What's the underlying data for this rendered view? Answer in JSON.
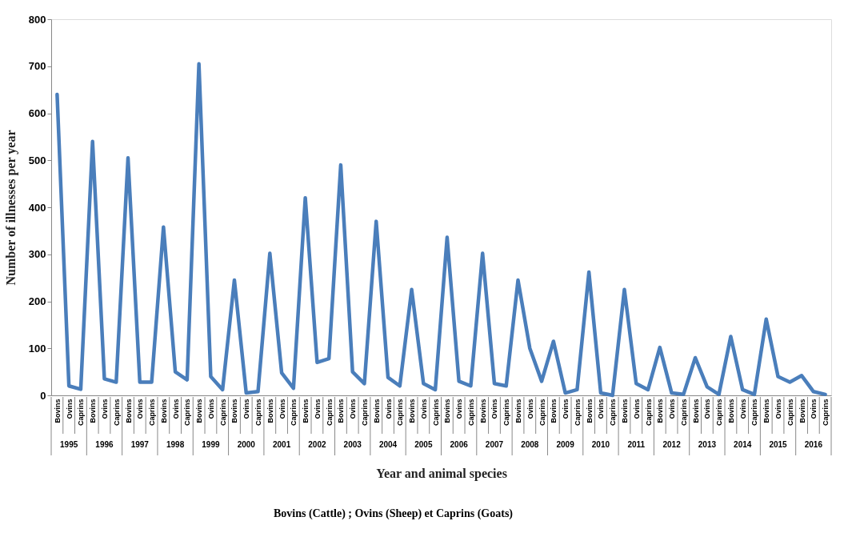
{
  "chart_data": {
    "type": "line",
    "xlabel": "Year and animal species",
    "ylabel": "Number of illnesses per year",
    "categories": [
      "Bovins",
      "Ovins",
      "Caprins",
      "Bovins",
      "Ovins",
      "Caprins",
      "Bovins",
      "Ovins",
      "Caprins",
      "Bovins",
      "Ovins",
      "Caprins",
      "Bovins",
      "Ovins",
      "Caprins",
      "Bovins",
      "Ovins",
      "Caprins",
      "Bovins",
      "Ovins",
      "Caprins",
      "Bovins",
      "Ovins",
      "Caprins",
      "Bovins",
      "Ovins",
      "Caprins",
      "Bovins",
      "Ovins",
      "Caprins",
      "Bovins",
      "Ovins",
      "Caprins",
      "Bovins",
      "Ovins",
      "Caprins",
      "Bovins",
      "Ovins",
      "Caprins",
      "Bovins",
      "Ovins",
      "Caprins",
      "Bovins",
      "Ovins",
      "Caprins",
      "Bovins",
      "Ovins",
      "Caprins",
      "Bovins",
      "Ovins",
      "Caprins",
      "Bovins",
      "Ovins",
      "Caprins",
      "Bovins",
      "Ovins",
      "Caprins",
      "Bovins",
      "Ovins",
      "Caprins",
      "Bovins",
      "Ovins",
      "Caprins",
      "Bovins",
      "Ovins",
      "Caprins"
    ],
    "series": [
      {
        "color": "#4a7ebb",
        "values": [
          640,
          20,
          13,
          540,
          35,
          28,
          505,
          28,
          28,
          358,
          50,
          33,
          705,
          40,
          12,
          245,
          5,
          8,
          302,
          48,
          15,
          420,
          70,
          78,
          490,
          50,
          25,
          370,
          38,
          20,
          225,
          25,
          12,
          336,
          30,
          20,
          302,
          25,
          20,
          245,
          100,
          30,
          115,
          5,
          12,
          262,
          5,
          0,
          225,
          25,
          12,
          102,
          5,
          2,
          80,
          18,
          2,
          125,
          12,
          2,
          162,
          40,
          28,
          42,
          8,
          2
        ]
      }
    ],
    "ylim": [
      0,
      800
    ],
    "yticks": [
      0,
      100,
      200,
      300,
      400,
      500,
      600,
      700,
      800
    ],
    "grid": false,
    "marker": "none",
    "line_style": "solid",
    "annotations": [
      "1995",
      "1996",
      "1997",
      "1998",
      "1999",
      "2000",
      "2001",
      "2002",
      "2003",
      "2004",
      "2005",
      "2006",
      "2007",
      "2008",
      "2009",
      "2010",
      "2011",
      "2012",
      "2013",
      "2014",
      "2015",
      "2016",
      "Bovins (Cattle) ; Ovins (Sheep) et Caprins (Goats)"
    ]
  }
}
